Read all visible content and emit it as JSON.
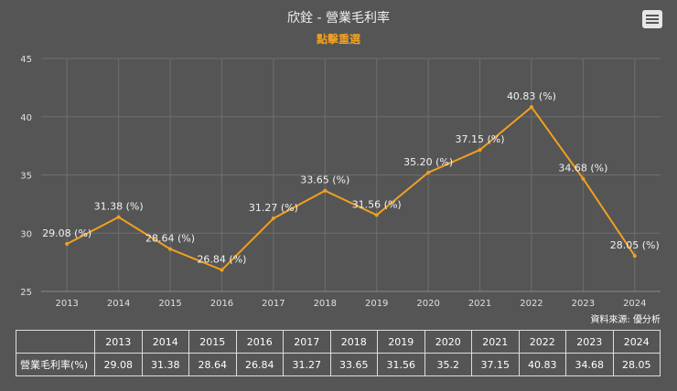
{
  "header": {
    "title": "欣銓 - 營業毛利率",
    "subtitle": "點擊重選"
  },
  "source": "資料來源: 優分析",
  "colors": {
    "line": "#f0a020",
    "background": "#555555",
    "grid": "#6e6e6e"
  },
  "menu_icon": "hamburger-menu-icon",
  "chart_data": {
    "type": "line",
    "title": "欣銓 - 營業毛利率",
    "categories": [
      "2013",
      "2014",
      "2015",
      "2016",
      "2017",
      "2018",
      "2019",
      "2020",
      "2021",
      "2022",
      "2023",
      "2024"
    ],
    "series": [
      {
        "name": "營業毛利率(%)",
        "values": [
          29.08,
          31.38,
          28.64,
          26.84,
          31.27,
          33.65,
          31.56,
          35.2,
          37.15,
          40.83,
          34.68,
          28.05
        ]
      }
    ],
    "data_labels": [
      "29.08 (%)",
      "31.38 (%)",
      "28.64 (%)",
      "26.84 (%)",
      "31.27 (%)",
      "33.65 (%)",
      "31.56 (%)",
      "35.20 (%)",
      "37.15 (%)",
      "40.83 (%)",
      "34.68 (%)",
      "28.05 (%)"
    ],
    "yticks": [
      "25",
      "30",
      "35",
      "40",
      "45"
    ],
    "ylim": [
      25,
      45
    ],
    "xlabel": "",
    "ylabel": "",
    "grid": true
  },
  "table": {
    "header": [
      "",
      "2013",
      "2014",
      "2015",
      "2016",
      "2017",
      "2018",
      "2019",
      "2020",
      "2021",
      "2022",
      "2023",
      "2024"
    ],
    "row_label": "營業毛利率(%)",
    "values": [
      "29.08",
      "31.38",
      "28.64",
      "26.84",
      "31.27",
      "33.65",
      "31.56",
      "35.2",
      "37.15",
      "40.83",
      "34.68",
      "28.05"
    ]
  }
}
